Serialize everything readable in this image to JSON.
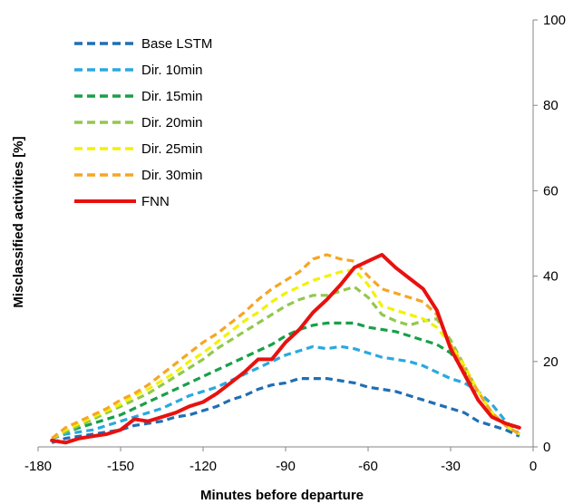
{
  "chart_data": {
    "type": "line",
    "title": "",
    "xlabel": "Minutes before departure",
    "ylabel": "Misclassified activities [%]",
    "xlim": [
      -180,
      0
    ],
    "ylim": [
      0,
      100
    ],
    "xticks": [
      -180,
      -150,
      -120,
      -90,
      -60,
      -30,
      0
    ],
    "yticks": [
      0,
      20,
      40,
      60,
      80,
      100
    ],
    "xtick_labels": [
      "-180",
      "-150",
      "-120",
      "-90",
      "-60",
      "-30",
      "0"
    ],
    "ytick_labels": [
      "0",
      "20",
      "40",
      "60",
      "80",
      "100"
    ],
    "y_axis_side": "right",
    "grid": false,
    "legend_position": "top-left",
    "x": [
      -175,
      -170,
      -165,
      -160,
      -155,
      -150,
      -145,
      -140,
      -135,
      -130,
      -125,
      -120,
      -115,
      -110,
      -105,
      -100,
      -95,
      -90,
      -85,
      -80,
      -75,
      -70,
      -65,
      -60,
      -55,
      -50,
      -45,
      -40,
      -35,
      -30,
      -25,
      -20,
      -15,
      -10,
      -5
    ],
    "series": [
      {
        "name": "Base LSTM",
        "color": "#1f6fb4",
        "style": "dashed",
        "values": [
          1,
          2,
          2.5,
          3,
          3.5,
          4,
          5,
          5.5,
          6,
          7,
          7.5,
          8.5,
          9.5,
          11,
          12,
          13.5,
          14.5,
          15,
          16,
          16,
          16,
          15.5,
          15,
          14,
          13.5,
          13,
          12,
          11,
          10,
          9,
          8,
          6,
          5,
          4,
          2.5
        ]
      },
      {
        "name": "Dir. 10min",
        "color": "#29a9e0",
        "style": "dashed",
        "values": [
          2,
          3,
          3.5,
          4,
          5,
          6,
          7,
          8,
          9,
          10.5,
          12,
          13,
          14,
          15.5,
          17,
          18.5,
          20,
          21.5,
          22.5,
          23.5,
          23,
          23.5,
          23,
          22,
          21,
          20.5,
          20,
          19,
          17.5,
          16,
          15,
          13,
          10,
          6,
          3
        ]
      },
      {
        "name": "Dir. 15min",
        "color": "#18a049",
        "style": "dashed",
        "values": [
          2,
          3.5,
          4.5,
          5.5,
          6.5,
          7.5,
          9,
          10.5,
          12,
          13.5,
          15,
          16.5,
          18,
          19.5,
          21,
          22.5,
          24,
          26,
          27.5,
          28.5,
          29,
          29,
          29,
          28,
          27.5,
          27,
          26,
          25,
          24,
          22,
          18,
          13,
          8,
          5,
          3
        ]
      },
      {
        "name": "Dir. 20min",
        "color": "#92c84d",
        "style": "dashed",
        "values": [
          2,
          3.5,
          5,
          6.5,
          8,
          9.5,
          11,
          12.5,
          14.5,
          16.5,
          18.5,
          20.5,
          23,
          25,
          27,
          29,
          31,
          33,
          34.5,
          35.5,
          35.5,
          36.5,
          37.5,
          35,
          31,
          29.5,
          28.5,
          29.5,
          30,
          25,
          19,
          13,
          8,
          5,
          3
        ]
      },
      {
        "name": "Dir. 25min",
        "color": "#f2f200",
        "style": "dashed",
        "values": [
          2,
          4,
          5.5,
          7,
          8.5,
          10,
          12,
          13.5,
          15.5,
          17.5,
          20,
          22,
          24.5,
          27,
          29.5,
          31.5,
          34,
          36,
          37.5,
          39,
          40,
          41,
          41.5,
          38,
          33,
          32,
          31,
          30,
          28,
          24,
          19,
          13,
          8,
          5,
          3
        ]
      },
      {
        "name": "Dir. 30min",
        "color": "#f5a623",
        "style": "dashed",
        "values": [
          2,
          4.5,
          6,
          7.5,
          9,
          11,
          12.5,
          14.5,
          17,
          19.5,
          22,
          24.5,
          26.5,
          29,
          31.5,
          34.5,
          37,
          39,
          41,
          44,
          45,
          44,
          43.5,
          40,
          37,
          36,
          35,
          34,
          31,
          24,
          18,
          13,
          8,
          5,
          3
        ]
      },
      {
        "name": "FNN",
        "color": "#e8110f",
        "style": "solid",
        "values": [
          1.5,
          1,
          2,
          2.5,
          3,
          4,
          6.5,
          6,
          7,
          8,
          9.5,
          10.5,
          12.5,
          15,
          17.5,
          20.5,
          20.5,
          24.5,
          27.5,
          31.5,
          34.5,
          38,
          42,
          43.5,
          45,
          42,
          39.5,
          37,
          32,
          23,
          17,
          11,
          7,
          5.5,
          4.5
        ]
      }
    ]
  }
}
